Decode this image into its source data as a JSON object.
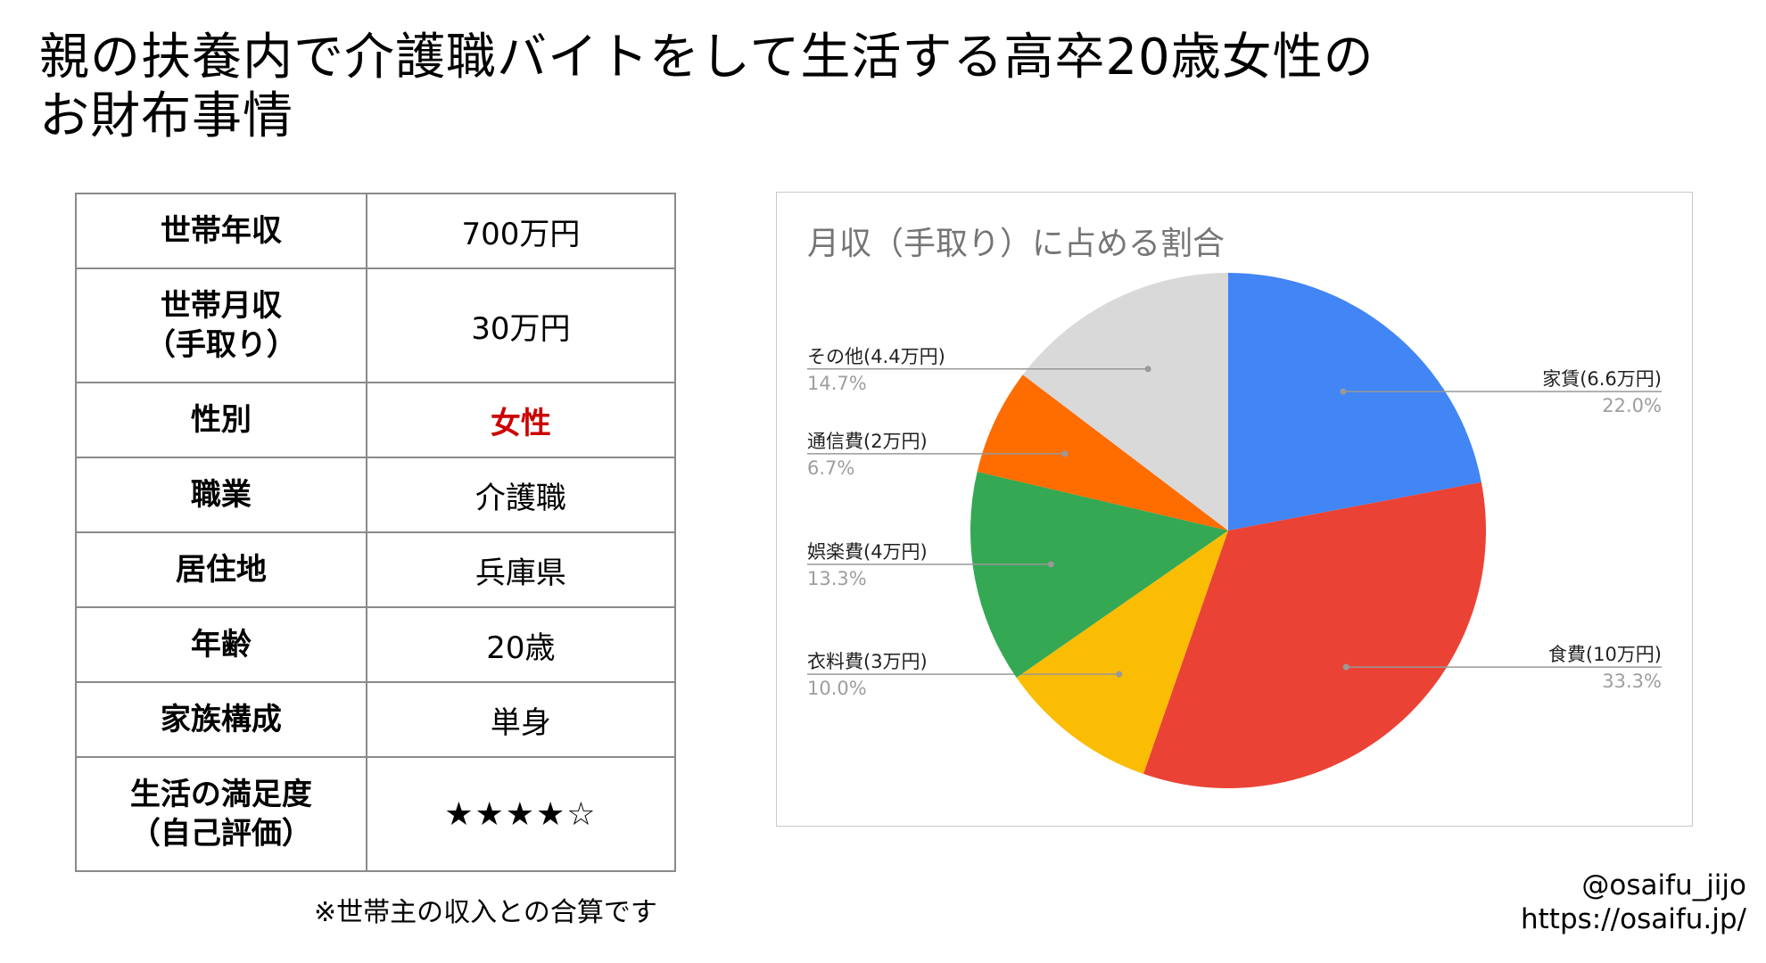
{
  "title": {
    "line1": "親の扶養内で介護職バイトをして生活する高卒20歳女性の",
    "line2": "お財布事情"
  },
  "profile": {
    "rows": [
      {
        "key": "世帯年収",
        "value": "700万円"
      },
      {
        "key": "世帯月収（手取り）",
        "key_line1": "世帯月収",
        "key_line2": "（手取り）",
        "value": "30万円"
      },
      {
        "key": "性別",
        "value": "女性",
        "value_color": "#cc0000"
      },
      {
        "key": "職業",
        "value": "介護職"
      },
      {
        "key": "居住地",
        "value": "兵庫県"
      },
      {
        "key": "年齢",
        "value": "20歳"
      },
      {
        "key": "家族構成",
        "value": "単身"
      },
      {
        "key": "生活の満足度（自己評価）",
        "key_line1": "生活の満足度",
        "key_line2": "（自己評価）",
        "value": "★★★★☆",
        "rating": 4,
        "rating_max": 5
      }
    ],
    "note": "※世帯主の収入との合算です"
  },
  "chart_data": {
    "type": "pie",
    "title": "月収（手取り）に占める割合",
    "slices": [
      {
        "label": "家賃(6.6万円)",
        "value": 6.6,
        "percent": "22.0%",
        "color": "#4285f4"
      },
      {
        "label": "食費(10万円)",
        "value": 10,
        "percent": "33.3%",
        "color": "#ea4335"
      },
      {
        "label": "衣料費(3万円)",
        "value": 3,
        "percent": "10.0%",
        "color": "#fbbc04"
      },
      {
        "label": "娯楽費(4万円)",
        "value": 4,
        "percent": "13.3%",
        "color": "#34a853"
      },
      {
        "label": "通信費(2万円)",
        "value": 2,
        "percent": "6.7%",
        "color": "#ff6d01"
      },
      {
        "label": "その他(4.4万円)",
        "value": 4.4,
        "percent": "14.7%",
        "color": "#d9d9d9"
      }
    ],
    "legend": "none"
  },
  "credit": {
    "handle": "@osaifu_jijo",
    "url": "https://osaifu.jp/"
  }
}
